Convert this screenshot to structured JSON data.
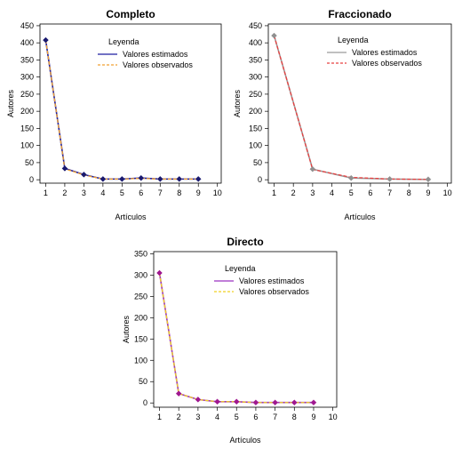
{
  "chart_data": [
    {
      "type": "line",
      "title": "Completo",
      "xlabel": "Artículos",
      "ylabel": "Autores",
      "xlim": [
        0.7,
        10.2
      ],
      "ylim": [
        -10,
        455
      ],
      "xticks": [
        1,
        2,
        3,
        4,
        5,
        6,
        7,
        8,
        9,
        10
      ],
      "yticks": [
        0,
        50,
        100,
        150,
        200,
        250,
        300,
        350,
        400,
        450
      ],
      "legend_title": "Leyenda",
      "legend_placement": "top-right",
      "series": [
        {
          "name": "Valores estimados",
          "color": "#1f1fa0",
          "style": "solid",
          "x": [
            1,
            2,
            3,
            4,
            5,
            6,
            7,
            8,
            9
          ],
          "y": [
            408,
            33,
            15,
            2,
            2,
            5,
            2,
            2,
            2
          ]
        },
        {
          "name": "Valores observados",
          "color": "#f0a030",
          "style": "dashed",
          "x": [
            1,
            2,
            3,
            4,
            5,
            6,
            7,
            8,
            9
          ],
          "y": [
            408,
            32,
            14,
            2,
            2,
            4,
            2,
            2,
            2
          ]
        }
      ],
      "markers": {
        "color": "#1a1a70",
        "x": [
          1,
          2,
          3,
          4,
          5,
          6,
          7,
          8,
          9
        ],
        "y": [
          408,
          33,
          15,
          2,
          2,
          5,
          2,
          2,
          2
        ]
      }
    },
    {
      "type": "line",
      "title": "Fraccionado",
      "xlabel": "Artículos",
      "ylabel": "Autores",
      "xlim": [
        0.7,
        10.2
      ],
      "ylim": [
        -10,
        455
      ],
      "xticks": [
        1,
        2,
        3,
        4,
        5,
        6,
        7,
        8,
        9,
        10
      ],
      "yticks": [
        0,
        50,
        100,
        150,
        200,
        250,
        300,
        350,
        400,
        450
      ],
      "legend_title": "Leyenda",
      "legend_placement": "top-right",
      "series": [
        {
          "name": "Valores estimados",
          "color": "#9a9a9a",
          "style": "solid",
          "x": [
            1,
            3,
            5,
            7,
            9
          ],
          "y": [
            421,
            31,
            5,
            2,
            1
          ]
        },
        {
          "name": "Valores observados",
          "color": "#e84040",
          "style": "dashed",
          "x": [
            1,
            3,
            5,
            7,
            9
          ],
          "y": [
            421,
            30,
            7,
            2,
            1
          ]
        }
      ],
      "markers": {
        "color": "#909090",
        "x": [
          1,
          3,
          5,
          7,
          9
        ],
        "y": [
          421,
          31,
          5,
          2,
          1
        ]
      }
    },
    {
      "type": "line",
      "title": "Directo",
      "xlabel": "Artículos",
      "ylabel": "Autores",
      "xlim": [
        0.7,
        10.2
      ],
      "ylim": [
        -10,
        355
      ],
      "xticks": [
        1,
        2,
        3,
        4,
        5,
        6,
        7,
        8,
        9,
        10
      ],
      "yticks": [
        0,
        50,
        100,
        150,
        200,
        250,
        300,
        350
      ],
      "legend_title": "Leyenda",
      "legend_placement": "top-right",
      "series": [
        {
          "name": "Valores estimados",
          "color": "#9b30c0",
          "style": "solid",
          "x": [
            1,
            2,
            3,
            4,
            5,
            6,
            7,
            8,
            9
          ],
          "y": [
            305,
            22,
            8,
            3,
            3,
            1,
            1,
            1,
            1
          ]
        },
        {
          "name": "Valores observados",
          "color": "#f0d020",
          "style": "dashed",
          "x": [
            1,
            2,
            3,
            4,
            5,
            6,
            7,
            8,
            9
          ],
          "y": [
            305,
            22,
            8,
            3,
            3,
            1,
            1,
            1,
            1
          ]
        }
      ],
      "markers": {
        "color": "#a01890",
        "x": [
          1,
          2,
          3,
          4,
          5,
          6,
          7,
          8,
          9
        ],
        "y": [
          305,
          22,
          8,
          3,
          3,
          1,
          1,
          1,
          1
        ]
      }
    }
  ]
}
